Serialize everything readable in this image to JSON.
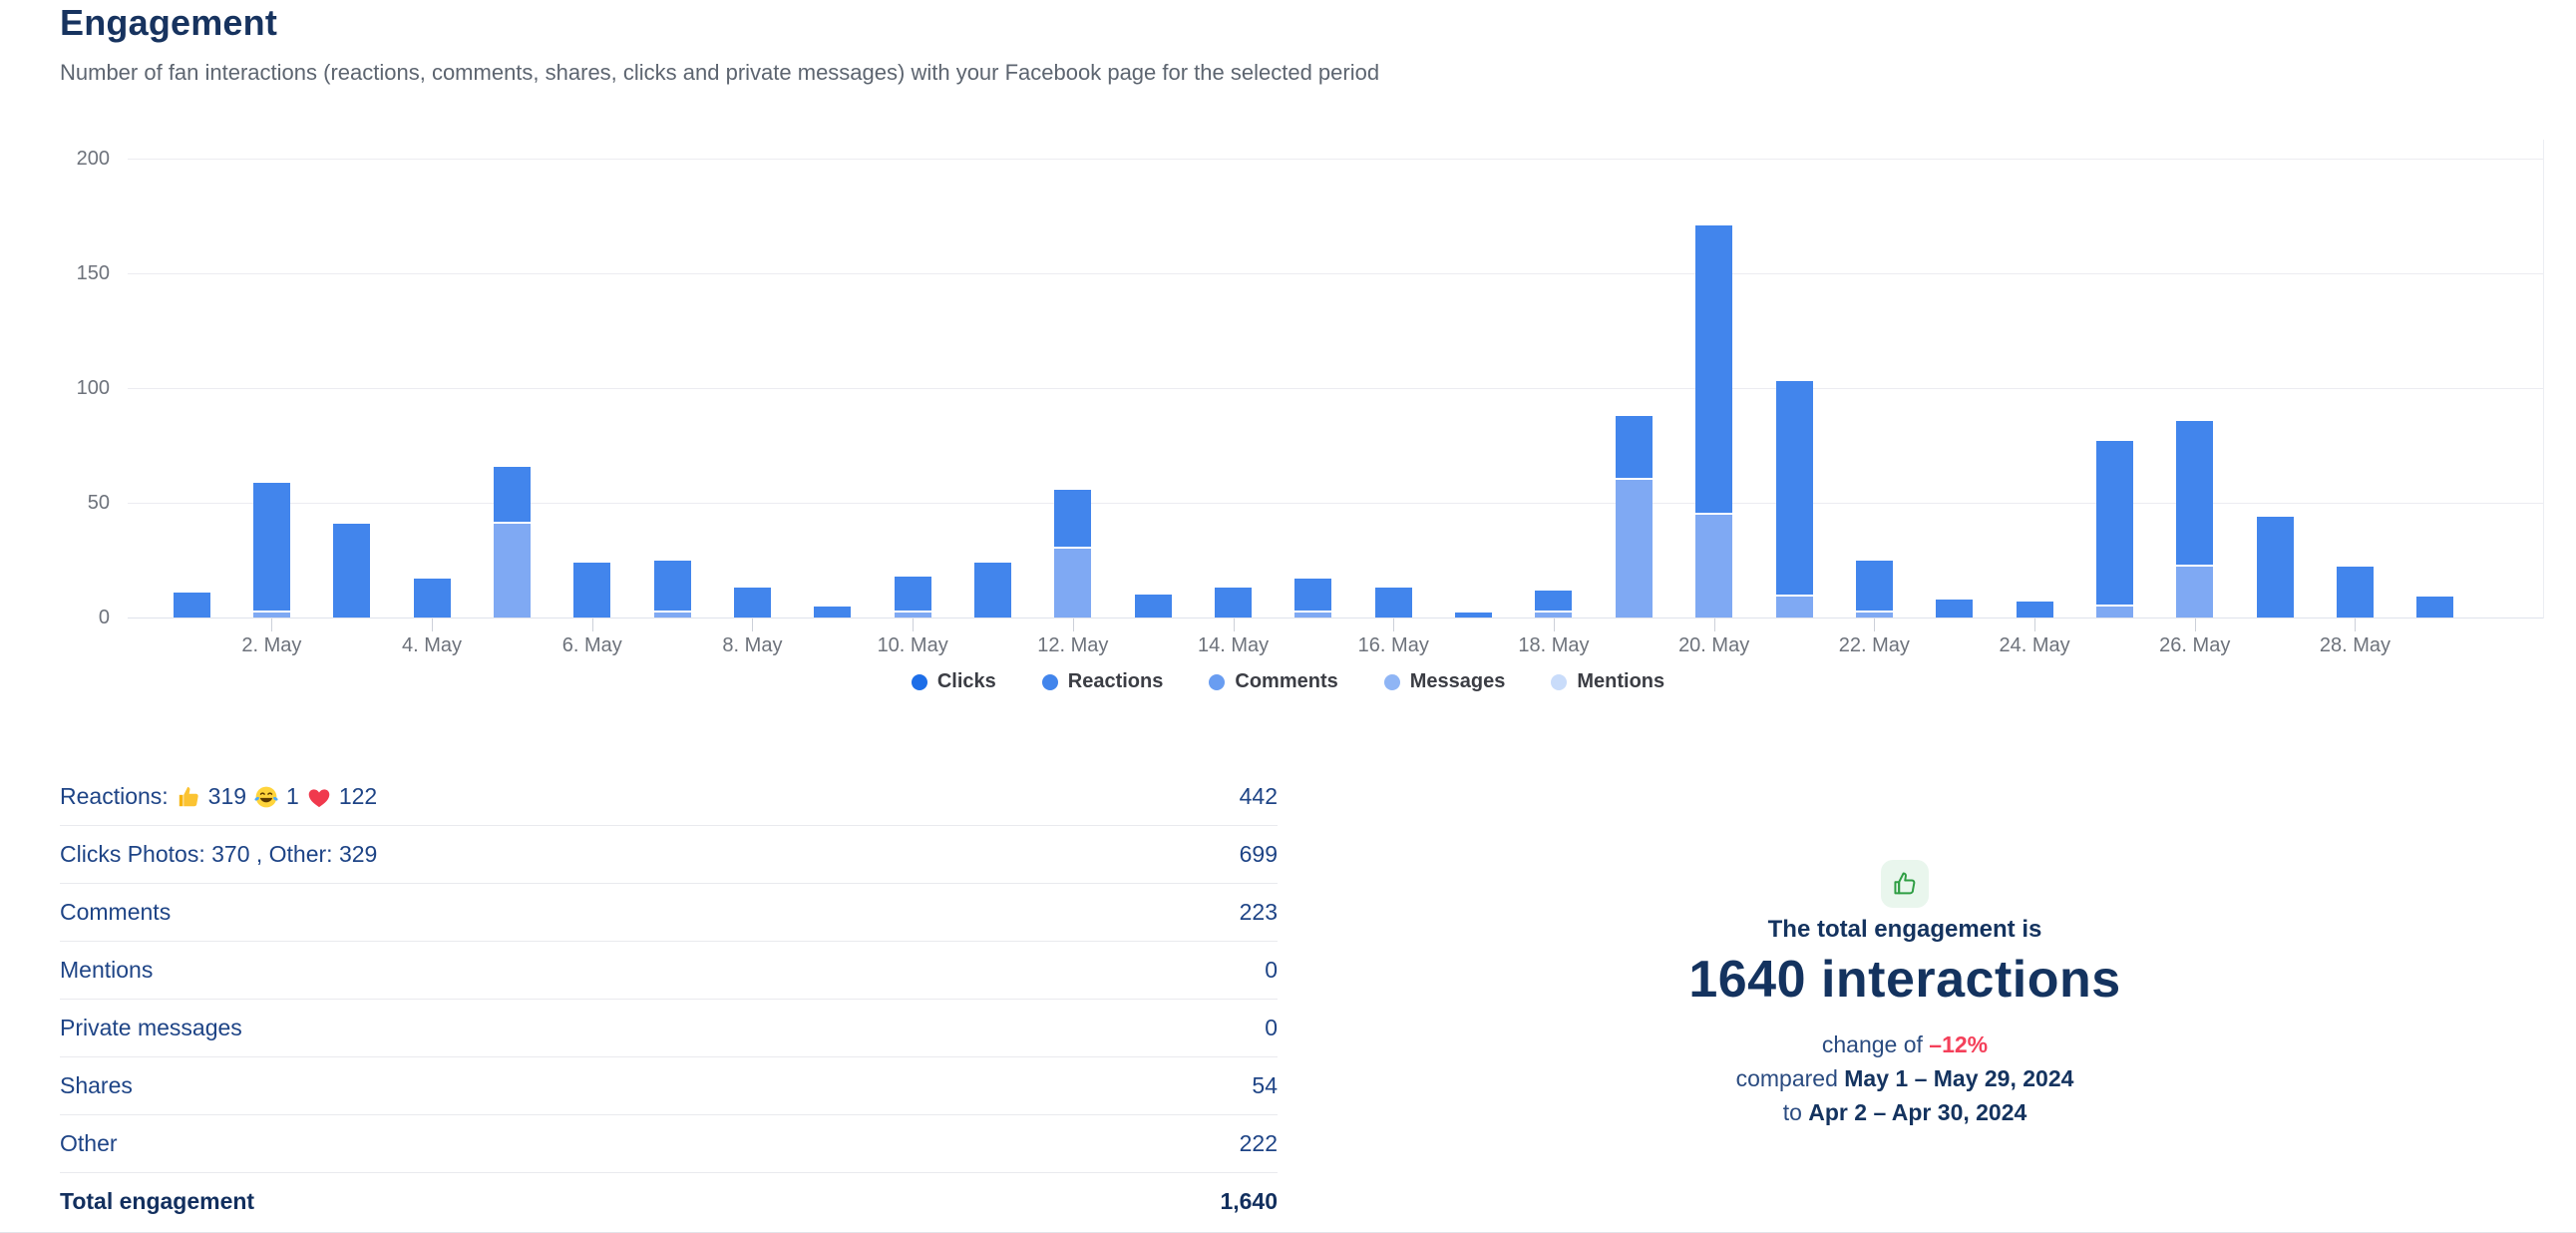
{
  "header": {
    "title": "Engagement",
    "subtitle": "Number of fan interactions (reactions, comments, shares, clicks and private messages) with your Facebook page for the selected period"
  },
  "chart_data": {
    "type": "bar",
    "stacked": true,
    "categories": [
      "1. May",
      "2. May",
      "3. May",
      "4. May",
      "5. May",
      "6. May",
      "7. May",
      "8. May",
      "9. May",
      "10. May",
      "11. May",
      "12. May",
      "13. May",
      "14. May",
      "15. May",
      "16. May",
      "17. May",
      "18. May",
      "19. May",
      "20. May",
      "21. May",
      "22. May",
      "23. May",
      "24. May",
      "25. May",
      "26. May",
      "27. May",
      "28. May",
      "29. May"
    ],
    "x_tick_labels_every": 2,
    "y_ticks": [
      0,
      50,
      100,
      150,
      200
    ],
    "ylim": [
      0,
      200
    ],
    "grid": true,
    "legend_position": "bottom",
    "series": [
      {
        "name": "Comments (light lower segment)",
        "color": "#7fa9f3",
        "values": [
          0,
          2,
          0,
          0,
          41,
          0,
          2,
          0,
          0,
          2,
          0,
          30,
          0,
          0,
          2,
          0,
          0,
          2,
          60,
          45,
          9,
          2,
          0,
          0,
          5,
          22,
          0,
          0,
          0
        ]
      },
      {
        "name": "Clicks + Reactions (dark upper segment)",
        "color": "#4285ec",
        "values": [
          11,
          56,
          41,
          17,
          24,
          24,
          22,
          13,
          5,
          15,
          24,
          25,
          10,
          13,
          14,
          13,
          2,
          9,
          27,
          125,
          93,
          22,
          8,
          7,
          71,
          63,
          44,
          22,
          9
        ]
      }
    ]
  },
  "legend": {
    "items": [
      {
        "label": "Clicks",
        "color": "#1d6ee8"
      },
      {
        "label": "Reactions",
        "color": "#4285ec"
      },
      {
        "label": "Comments",
        "color": "#699df1"
      },
      {
        "label": "Messages",
        "color": "#8fb5f5"
      },
      {
        "label": "Mentions",
        "color": "#c9dcfa"
      }
    ]
  },
  "stats": {
    "rows": [
      {
        "id": "reactions",
        "value": "442",
        "bold": false,
        "parts": [
          {
            "text": "Reactions:"
          },
          {
            "icon": "thumbs-up-emoji"
          },
          {
            "text": "319"
          },
          {
            "icon": "laughing-emoji"
          },
          {
            "text": "1"
          },
          {
            "icon": "heart-emoji"
          },
          {
            "text": "122"
          }
        ]
      },
      {
        "id": "clicks",
        "value": "699",
        "bold": false,
        "parts": [
          {
            "text": "Clicks Photos: 370 , Other: 329"
          }
        ]
      },
      {
        "id": "comments",
        "value": "223",
        "bold": false,
        "parts": [
          {
            "text": "Comments"
          }
        ]
      },
      {
        "id": "mentions",
        "value": "0",
        "bold": false,
        "parts": [
          {
            "text": "Mentions"
          }
        ]
      },
      {
        "id": "private-messages",
        "value": "0",
        "bold": false,
        "parts": [
          {
            "text": "Private messages"
          }
        ]
      },
      {
        "id": "shares",
        "value": "54",
        "bold": false,
        "parts": [
          {
            "text": "Shares"
          }
        ]
      },
      {
        "id": "other",
        "value": "222",
        "bold": false,
        "parts": [
          {
            "text": "Other"
          }
        ]
      },
      {
        "id": "total",
        "value": "1,640",
        "bold": true,
        "parts": [
          {
            "text": "Total engagement"
          }
        ]
      }
    ]
  },
  "summary": {
    "icon": "thumbs-up-icon",
    "icon_color": "#2f9e44",
    "icon_bg": "#e9f6ed",
    "heading": "The total engagement is",
    "big": "1640 interactions",
    "change_prefix": "change of ",
    "change_value": "–12%",
    "change_color": "#f4405a",
    "compared_prefix": "compared ",
    "compared_range": "May 1 – May 29, 2024",
    "to_prefix": "to ",
    "to_range": "Apr 2 – Apr 30, 2024"
  }
}
